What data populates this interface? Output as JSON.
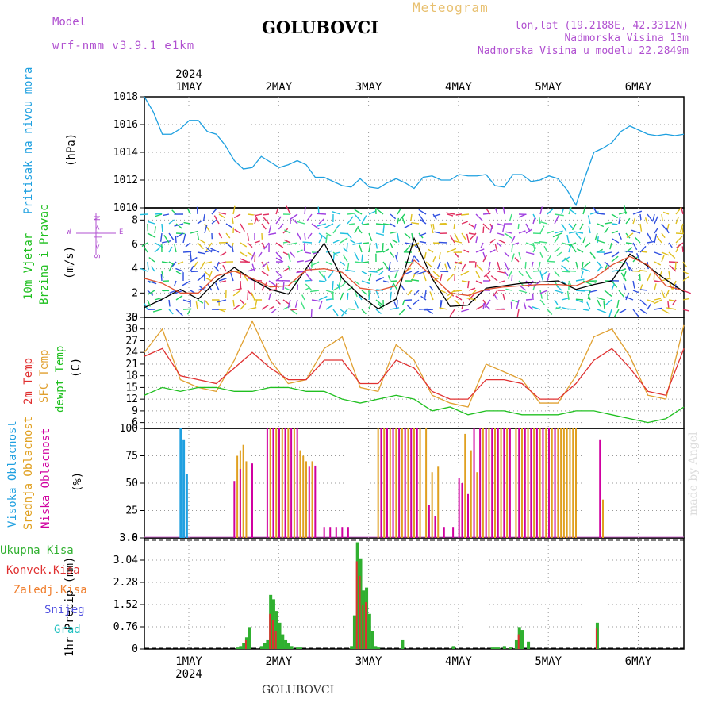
{
  "header": {
    "model_label": "Model",
    "model_name": "wrf-nmm_v3.9.1 e1km",
    "station": "GOLUBOVCI",
    "meteogram_label": "Meteogram",
    "lonlat": "lon,lat (19.2188E, 42.3312N)",
    "altitude": "Nadmorska Visina 13m",
    "model_altitude": "Nadmorska Visina u modelu 22.2849m"
  },
  "footer": {
    "station": "GOLUBOVCI",
    "credit": "made by Angel"
  },
  "colors": {
    "pressure": "#1ea0e0",
    "wind_speed": "#000000",
    "wind_gust": "#e05030",
    "temp2m": "#e03030",
    "sfc": "#e0a030",
    "dew": "#20c020",
    "high": "#20a0e0",
    "mid": "#e0a020",
    "low": "#d000a0",
    "precip_total": "#30b030",
    "precip_conv": "#e03030"
  },
  "time_axis": {
    "year": "2024",
    "days": [
      "1MAY",
      "2MAY",
      "3MAY",
      "4MAY",
      "5MAY",
      "6MAY"
    ]
  },
  "chart_data": [
    {
      "type": "line",
      "panel": "pressure",
      "ylabel_main": "Pritisak na nivou mora",
      "ylabel_unit": "(hPa)",
      "ylim": [
        1010,
        1018
      ],
      "yticks": [
        "1010",
        "1012",
        "1014",
        "1016",
        "1018"
      ],
      "x": [
        0,
        3,
        6,
        9,
        12,
        15,
        18,
        21,
        24,
        27,
        30,
        33,
        36,
        39,
        42,
        45,
        48,
        51,
        54,
        57,
        60,
        63,
        66,
        69,
        72,
        75,
        78,
        81,
        84,
        87,
        90,
        93,
        96,
        99,
        102,
        105,
        108,
        111,
        114,
        117,
        120,
        123,
        126,
        129,
        132,
        135,
        138,
        141,
        144,
        147,
        150,
        153,
        156,
        159,
        162,
        165,
        168,
        171,
        174,
        177,
        180
      ],
      "series": [
        {
          "values": [
            1018,
            1016.9,
            1015.3,
            1015.3,
            1015.7,
            1016.3,
            1016.3,
            1015.5,
            1015.3,
            1014.5,
            1013.4,
            1012.8,
            1012.9,
            1013.7,
            1013.3,
            1012.9,
            1013.1,
            1013.4,
            1013.1,
            1012.2,
            1012.2,
            1011.9,
            1011.6,
            1011.5,
            1012.1,
            1011.5,
            1011.4,
            1011.8,
            1012.1,
            1011.8,
            1011.4,
            1012.2,
            1012.3,
            1012,
            1012,
            1012.4,
            1012.3,
            1012.3,
            1012.4,
            1011.6,
            1011.5,
            1012.4,
            1012.4,
            1011.9,
            1012,
            1012.3,
            1012.1,
            1011.3,
            1010.2,
            1012.2,
            1014,
            1014.3,
            1014.7,
            1015.5,
            1015.9,
            1015.6,
            1015.3,
            1015.2,
            1015.3,
            1015.2,
            1015.3
          ]
        }
      ]
    },
    {
      "type": "line",
      "panel": "wind",
      "ylabel_main": "10m Vjetar",
      "ylabel_sub": "Brzina i Pravac",
      "ylabel_unit": "(m/s)",
      "compass": [
        "N",
        "W",
        "E",
        "S"
      ],
      "ylim": [
        0,
        9
      ],
      "yticks": [
        "0",
        "2",
        "4",
        "6",
        "8"
      ],
      "x": [
        0,
        6,
        12,
        18,
        24,
        30,
        36,
        42,
        48,
        54,
        60,
        66,
        72,
        78,
        84,
        90,
        96,
        102,
        108,
        114,
        120,
        126,
        132,
        138,
        144,
        150,
        156,
        162,
        168,
        174,
        180
      ],
      "series": [
        {
          "values": [
            0.8,
            1.5,
            2.3,
            1.5,
            3.0,
            4.1,
            3.1,
            2.3,
            1.9,
            4.0,
            6.1,
            3.2,
            1.8,
            0.7,
            1.5,
            6.5,
            3.2,
            0.9,
            1.0,
            2.4,
            2.6,
            2.8,
            2.9,
            3.0,
            2.3,
            2.7,
            3.0,
            5.2,
            4.2,
            3.1,
            2.1
          ]
        },
        {
          "values": [
            3.2,
            2.8,
            2.0,
            2.0,
            3.4,
            3.8,
            3.2,
            2.5,
            2.6,
            3.9,
            4.0,
            3.7,
            2.4,
            2.2,
            2.6,
            4.7,
            3.4,
            2.0,
            1.8,
            2.3,
            2.5,
            2.6,
            2.7,
            2.7,
            2.6,
            3.2,
            4.3,
            5.0,
            4.3,
            2.6,
            2.2
          ]
        }
      ]
    },
    {
      "type": "line",
      "panel": "temperature",
      "ylabel_main": "2m Temp",
      "ylabel_sub": "SFC Temp",
      "ylabel_sub2": "dewpt Temp",
      "ylabel_unit": "(C)",
      "ylim": [
        4.5,
        33
      ],
      "yticks": [
        "6",
        "9",
        "12",
        "15",
        "18",
        "21",
        "24",
        "27",
        "30",
        "33"
      ],
      "x": [
        0,
        6,
        12,
        18,
        24,
        30,
        36,
        42,
        48,
        54,
        60,
        66,
        72,
        78,
        84,
        90,
        96,
        102,
        108,
        114,
        120,
        126,
        132,
        138,
        144,
        150,
        156,
        162,
        168,
        174,
        180
      ],
      "series": [
        {
          "name": "2m Temp",
          "values": [
            23,
            25,
            18,
            17,
            16,
            20,
            24,
            20,
            17,
            17,
            22,
            22,
            16,
            16,
            22,
            20,
            14,
            12,
            12,
            17,
            17,
            16,
            12,
            12,
            16,
            22,
            25,
            20,
            14,
            13,
            25
          ]
        },
        {
          "name": "SFC Temp",
          "values": [
            24,
            30,
            17,
            15,
            14,
            22,
            32,
            22,
            16,
            17,
            25,
            28,
            15,
            14,
            26,
            22,
            13,
            11,
            10,
            21,
            19,
            17,
            11,
            11,
            18,
            28,
            30,
            23,
            13,
            12,
            31
          ]
        },
        {
          "name": "dewpt Temp",
          "values": [
            13,
            15,
            14,
            15,
            15,
            14,
            14,
            15,
            15,
            14,
            14,
            12,
            11,
            12,
            13,
            12,
            9,
            10,
            8,
            9,
            9,
            8,
            8,
            8,
            9,
            9,
            8,
            7,
            6,
            7,
            10
          ]
        }
      ]
    },
    {
      "type": "bar",
      "panel": "cloud",
      "ylabel_main": "Visoka Oblacnost",
      "ylabel_sub": "Srednja Oblacnost",
      "ylabel_sub2": "Niska Oblacnost",
      "ylabel_unit": "(%)",
      "ylim": [
        0,
        100
      ],
      "yticks": [
        "0",
        "25",
        "50",
        "75",
        "100"
      ],
      "series": [
        {
          "name": "Visoka",
          "x": [
            12,
            13,
            14
          ],
          "values": [
            100,
            90,
            58
          ]
        },
        {
          "name": "Srednja",
          "x": [
            31,
            32,
            33,
            34,
            42,
            44,
            46,
            48,
            50,
            52,
            53,
            54,
            56,
            78,
            80,
            82,
            84,
            86,
            88,
            90,
            92,
            94,
            96,
            98,
            107,
            109,
            111,
            113,
            115,
            117,
            119,
            121,
            124,
            126,
            128,
            130,
            132,
            134,
            136,
            138,
            139,
            140,
            141,
            142,
            143,
            144,
            153
          ],
          "values": [
            75,
            80,
            85,
            70,
            100,
            100,
            100,
            100,
            100,
            80,
            75,
            70,
            70,
            100,
            100,
            100,
            100,
            100,
            100,
            100,
            100,
            100,
            60,
            65,
            95,
            80,
            60,
            100,
            100,
            100,
            100,
            100,
            100,
            100,
            100,
            100,
            100,
            100,
            100,
            100,
            100,
            100,
            100,
            100,
            100,
            100,
            35
          ]
        },
        {
          "name": "Niska",
          "x": [
            30,
            32,
            36,
            41,
            43,
            45,
            47,
            49,
            51,
            55,
            57,
            60,
            62,
            64,
            66,
            68,
            79,
            81,
            83,
            85,
            87,
            89,
            91,
            95,
            97,
            100,
            103,
            105,
            106,
            108,
            110,
            112,
            114,
            116,
            118,
            120,
            122,
            125,
            127,
            129,
            131,
            133,
            135,
            137,
            152
          ],
          "values": [
            52,
            63,
            68,
            100,
            100,
            100,
            100,
            100,
            100,
            65,
            66,
            10,
            10,
            10,
            10,
            10,
            100,
            100,
            100,
            100,
            100,
            100,
            100,
            30,
            20,
            10,
            10,
            55,
            50,
            40,
            100,
            100,
            100,
            100,
            100,
            100,
            100,
            100,
            100,
            100,
            100,
            100,
            100,
            100,
            90
          ]
        }
      ]
    },
    {
      "type": "bar",
      "panel": "precip",
      "legend": [
        "Ukupna Kisa",
        "Konvek.Kisa",
        "Zaledj.Kisa",
        "Snijeg",
        "Grad"
      ],
      "ylabel_unit": "1hr Precip (mm)",
      "ylim": [
        0,
        3.8
      ],
      "yticks": [
        "0",
        "0.76",
        "1.52",
        "2.28",
        "3.04",
        "3.8"
      ],
      "series": [
        {
          "name": "Ukupna Kisa",
          "x": [
            31,
            32,
            33,
            34,
            35,
            39,
            40,
            41,
            42,
            43,
            44,
            45,
            46,
            47,
            48,
            49,
            51,
            52,
            69,
            70,
            71,
            72,
            73,
            74,
            75,
            76,
            77,
            78,
            86,
            103,
            116,
            117,
            118,
            120,
            122,
            124,
            125,
            126,
            128,
            151
          ],
          "values": [
            0.05,
            0.1,
            0.2,
            0.4,
            0.75,
            0.1,
            0.2,
            0.3,
            1.85,
            1.7,
            1.3,
            0.9,
            0.5,
            0.3,
            0.2,
            0.1,
            0.05,
            0.05,
            0.1,
            1.15,
            3.65,
            3.1,
            2.0,
            2.1,
            1.2,
            0.6,
            0.1,
            0.05,
            0.3,
            0.1,
            0.05,
            0.05,
            0.05,
            0.1,
            0.05,
            0.3,
            0.75,
            0.65,
            0.25,
            0.9
          ]
        },
        {
          "name": "Konvek.Kisa",
          "x": [
            34,
            42,
            43,
            44,
            71,
            72,
            73,
            74,
            125,
            151
          ],
          "values": [
            0.3,
            1.2,
            1.0,
            0.6,
            3.0,
            2.5,
            1.5,
            1.6,
            0.5,
            0.7
          ]
        }
      ]
    }
  ]
}
